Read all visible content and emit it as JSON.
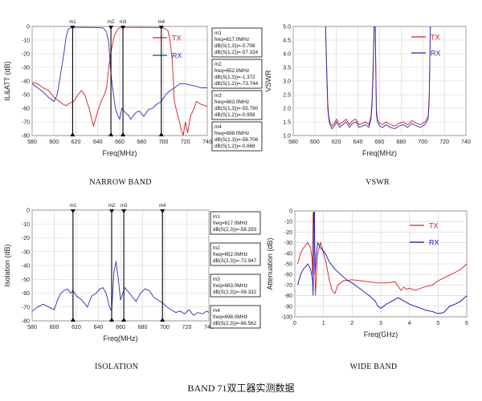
{
  "page_title": "BAND 71双工器实测数据",
  "captions": [
    "NARROW BAND",
    "VSWR",
    "ISOLATION",
    "WIDE BAND"
  ],
  "chart_data": [
    {
      "id": "narrow",
      "type": "line",
      "caption": "NARROW BAND",
      "xlabel": "Freq(MHz)",
      "ylabel": "IL&ATT (dB)",
      "xlim": [
        580,
        740
      ],
      "ylim": [
        -80,
        0
      ],
      "xticks": [
        580,
        600,
        620,
        640,
        660,
        680,
        700,
        720,
        740
      ],
      "yticks": [
        0,
        -10,
        -20,
        -30,
        -40,
        -50,
        -60,
        -70,
        -80
      ],
      "grid": true,
      "legend_placement": "right",
      "series": [
        {
          "name": "TX",
          "color": "#d02020",
          "x": [
            580,
            585,
            590,
            595,
            600,
            605,
            608,
            611,
            613,
            615,
            618,
            622,
            625,
            628,
            632,
            636,
            640,
            643,
            646,
            648,
            650,
            652,
            655,
            658,
            660,
            662,
            664,
            666,
            670,
            680,
            690,
            700,
            704,
            706,
            708,
            710,
            712,
            714,
            716,
            718,
            720,
            722,
            725,
            728,
            730,
            734,
            738,
            740
          ],
          "y": [
            -41,
            -42,
            -45,
            -47,
            -52,
            -55,
            -57,
            -58,
            -57,
            -56,
            -55,
            -50,
            -47,
            -50,
            -60,
            -73,
            -62,
            -55,
            -50,
            -45,
            -30,
            -19,
            -7,
            -2,
            -1,
            -0.8,
            -0.7,
            -0.7,
            -0.7,
            -0.7,
            -0.8,
            -1,
            -3,
            -10,
            -25,
            -55,
            -62,
            -68,
            -75,
            -80,
            -70,
            -78,
            -65,
            -60,
            -55,
            -57,
            -58,
            -59
          ]
        },
        {
          "name": "RX",
          "color": "#3030b0",
          "x": [
            580,
            585,
            590,
            595,
            600,
            603,
            606,
            609,
            611,
            613,
            615,
            617,
            620,
            625,
            630,
            640,
            645,
            648,
            650,
            652,
            654,
            656,
            658,
            660,
            662,
            664,
            666,
            668,
            670,
            672,
            675,
            678,
            682,
            686,
            690,
            694,
            698,
            702,
            706,
            710,
            715,
            720,
            725,
            730,
            735,
            740
          ],
          "y": [
            -42,
            -45,
            -48,
            -52,
            -55,
            -50,
            -35,
            -20,
            -8,
            -2,
            -1,
            -0.8,
            -0.7,
            -0.7,
            -0.7,
            -0.8,
            -1.2,
            -4,
            -12,
            -35,
            -48,
            -60,
            -65,
            -68,
            -60,
            -62,
            -64,
            -65,
            -68,
            -66,
            -63,
            -62,
            -66,
            -61,
            -60,
            -57,
            -55,
            -50,
            -47,
            -45,
            -42,
            -42,
            -43,
            -44,
            -45,
            -45
          ]
        }
      ],
      "markers": [
        {
          "name": "m1",
          "freq": 617,
          "lines": [
            "m1",
            "freq=617.0MHz",
            "dB(S(1,3))=-0.708",
            "dB(S(1,2))=-57.324"
          ]
        },
        {
          "name": "m2",
          "freq": 652,
          "lines": [
            "m2",
            "freq=652.0MHz",
            "dB(S(1,3))=-1.372",
            "dB(S(1,2))=-73.744"
          ]
        },
        {
          "name": "m3",
          "freq": 663,
          "lines": [
            "m3",
            "freq=663.0MHz",
            "dB(S(1,3))=-55.790",
            "dB(S(1,2))=-0.958"
          ]
        },
        {
          "name": "m4",
          "freq": 698,
          "lines": [
            "m4",
            "freq=698.0MHz",
            "dB(S(1,3))=-56.706",
            "dB(S(1,2))=-0.668"
          ]
        }
      ]
    },
    {
      "id": "vswr",
      "type": "line",
      "caption": "VSWR",
      "xlabel": "Freq(MHz)",
      "ylabel": "VSWR",
      "xlim": [
        580,
        740
      ],
      "ylim": [
        1.0,
        5.0
      ],
      "xticks": [
        580,
        600,
        620,
        640,
        660,
        680,
        700,
        720,
        740
      ],
      "yticks": [
        1.0,
        1.5,
        2.0,
        2.5,
        3.0,
        3.5,
        4.0,
        4.5,
        5.0
      ],
      "grid": true,
      "legend_placement": "top-right",
      "series": [
        {
          "name": "TX",
          "color": "#d02020",
          "x": [
            610,
            611,
            612,
            613,
            614,
            616,
            618,
            620,
            623,
            626,
            629,
            632,
            635,
            638,
            641,
            644,
            647,
            650,
            652,
            653,
            654,
            655,
            656,
            657,
            658,
            660,
            663,
            666,
            670,
            674,
            678,
            682,
            686,
            690,
            694,
            698,
            702,
            705,
            706,
            707
          ],
          "y": [
            5.0,
            3.5,
            2.2,
            1.7,
            1.5,
            1.35,
            1.45,
            1.6,
            1.4,
            1.5,
            1.6,
            1.4,
            1.55,
            1.6,
            1.4,
            1.45,
            1.5,
            1.4,
            1.7,
            2.3,
            3.5,
            5.0,
            5.0,
            2.0,
            1.6,
            1.45,
            1.4,
            1.5,
            1.4,
            1.35,
            1.45,
            1.5,
            1.4,
            1.55,
            1.45,
            1.4,
            1.5,
            1.7,
            2.5,
            5.0
          ]
        },
        {
          "name": "RX",
          "color": "#3030b0",
          "x": [
            610,
            611,
            612,
            613,
            614,
            616,
            618,
            620,
            623,
            626,
            629,
            632,
            635,
            638,
            641,
            644,
            647,
            650,
            652,
            653,
            654,
            655,
            656,
            657,
            658,
            660,
            663,
            666,
            670,
            674,
            678,
            682,
            686,
            690,
            694,
            698,
            702,
            705,
            706,
            707
          ],
          "y": [
            5.0,
            3.2,
            2.0,
            1.6,
            1.4,
            1.25,
            1.35,
            1.5,
            1.3,
            1.4,
            1.5,
            1.3,
            1.45,
            1.5,
            1.3,
            1.35,
            1.4,
            1.3,
            1.6,
            2.1,
            3.2,
            5.0,
            5.0,
            1.8,
            1.5,
            1.35,
            1.3,
            1.4,
            1.3,
            1.25,
            1.35,
            1.4,
            1.3,
            1.45,
            1.35,
            1.3,
            1.4,
            1.6,
            2.3,
            5.0
          ]
        }
      ]
    },
    {
      "id": "isolation",
      "type": "line",
      "caption": "ISOLATION",
      "xlabel": "Freq(MHz)",
      "ylabel": "Isolation (dB)",
      "xlim": [
        580,
        740
      ],
      "ylim": [
        -80,
        0
      ],
      "xticks": [
        580,
        600,
        620,
        640,
        660,
        680,
        700,
        720,
        740
      ],
      "yticks": [
        0,
        -10,
        -20,
        -30,
        -40,
        -50,
        -60,
        -70,
        -80
      ],
      "grid": true,
      "series": [
        {
          "name": "Isolation",
          "color": "#3030b0",
          "x": [
            580,
            585,
            590,
            595,
            600,
            603,
            606,
            609,
            612,
            615,
            617,
            620,
            625,
            630,
            634,
            638,
            641,
            644,
            647,
            650,
            652,
            654,
            656,
            658,
            660,
            662,
            664,
            666,
            670,
            674,
            678,
            682,
            686,
            690,
            694,
            698,
            702,
            706,
            710,
            714,
            718,
            722,
            726,
            730,
            734,
            738,
            740
          ],
          "y": [
            -73,
            -70,
            -68,
            -70,
            -72,
            -65,
            -60,
            -58,
            -57,
            -60,
            -58,
            -62,
            -65,
            -70,
            -62,
            -60,
            -57,
            -56,
            -60,
            -70,
            -73,
            -45,
            -37,
            -50,
            -65,
            -60,
            -56,
            -58,
            -62,
            -66,
            -60,
            -57,
            -58,
            -63,
            -65,
            -67,
            -70,
            -72,
            -74,
            -73,
            -75,
            -72,
            -76,
            -74,
            -75,
            -73,
            -74
          ]
        }
      ],
      "markers": [
        {
          "name": "m1",
          "freq": 617,
          "lines": [
            "m1",
            "freq=617.0MHz",
            "dB(S(2,3))=-58.293"
          ]
        },
        {
          "name": "m2",
          "freq": 652,
          "lines": [
            "m2",
            "freq=652.0MHz",
            "dB(S(2,3))=-72.947"
          ]
        },
        {
          "name": "m3",
          "freq": 663,
          "lines": [
            "m3",
            "freq=663.0MHz",
            "dB(S(2,3))=-56.332"
          ]
        },
        {
          "name": "m4",
          "freq": 698,
          "lines": [
            "m4",
            "freq=698.0MHz",
            "dB(S(2,3))=-66.562"
          ]
        }
      ]
    },
    {
      "id": "wide",
      "type": "line",
      "caption": "WIDE BAND",
      "xlabel": "Freq(GHz)",
      "ylabel": "Attenuation (dB)",
      "xlim": [
        0,
        6
      ],
      "ylim": [
        -100,
        0
      ],
      "xticks": [
        0,
        1,
        2,
        3,
        4,
        5,
        6
      ],
      "yticks": [
        0,
        -10,
        -20,
        -30,
        -40,
        -50,
        -60,
        -70,
        -80,
        -90,
        -100
      ],
      "grid": true,
      "legend_placement": "top-right",
      "series": [
        {
          "name": "TX",
          "color": "#d02020",
          "x": [
            0.1,
            0.2,
            0.3,
            0.45,
            0.55,
            0.6,
            0.62,
            0.64,
            0.66,
            0.68,
            0.7,
            0.72,
            0.75,
            0.8,
            0.9,
            1.0,
            1.1,
            1.2,
            1.3,
            1.4,
            1.5,
            1.7,
            2.0,
            2.3,
            2.6,
            2.9,
            3.2,
            3.5,
            3.7,
            3.8,
            3.9,
            4.0,
            4.2,
            4.5,
            4.8,
            5.0,
            5.3,
            5.6,
            5.8,
            6.0
          ],
          "y": [
            -50,
            -40,
            -35,
            -30,
            -35,
            -45,
            -60,
            -2,
            -1,
            -1,
            -60,
            -80,
            -60,
            -40,
            -30,
            -40,
            -50,
            -65,
            -75,
            -78,
            -70,
            -66,
            -65,
            -66,
            -67,
            -68,
            -68,
            -67,
            -75,
            -72,
            -74,
            -73,
            -75,
            -72,
            -70,
            -66,
            -62,
            -58,
            -55,
            -50
          ]
        },
        {
          "name": "RX",
          "color": "#1010c0",
          "x": [
            0.1,
            0.2,
            0.3,
            0.45,
            0.55,
            0.62,
            0.64,
            0.65,
            0.66,
            0.67,
            0.68,
            0.7,
            0.75,
            0.8,
            0.9,
            1.0,
            1.1,
            1.2,
            1.4,
            1.6,
            1.8,
            2.0,
            2.2,
            2.4,
            2.6,
            2.8,
            2.9,
            3.0,
            3.2,
            3.4,
            3.6,
            3.8,
            4.0,
            4.2,
            4.4,
            4.6,
            4.8,
            5.0,
            5.2,
            5.4,
            5.6,
            5.8,
            6.0
          ],
          "y": [
            -70,
            -60,
            -55,
            -50,
            -55,
            -65,
            -80,
            -30,
            -2,
            -1,
            -1,
            -60,
            -40,
            -30,
            -35,
            -38,
            -42,
            -48,
            -55,
            -60,
            -65,
            -68,
            -72,
            -76,
            -80,
            -85,
            -90,
            -92,
            -88,
            -85,
            -82,
            -85,
            -88,
            -90,
            -92,
            -94,
            -95,
            -97,
            -96,
            -90,
            -88,
            -85,
            -80
          ]
        }
      ]
    }
  ]
}
